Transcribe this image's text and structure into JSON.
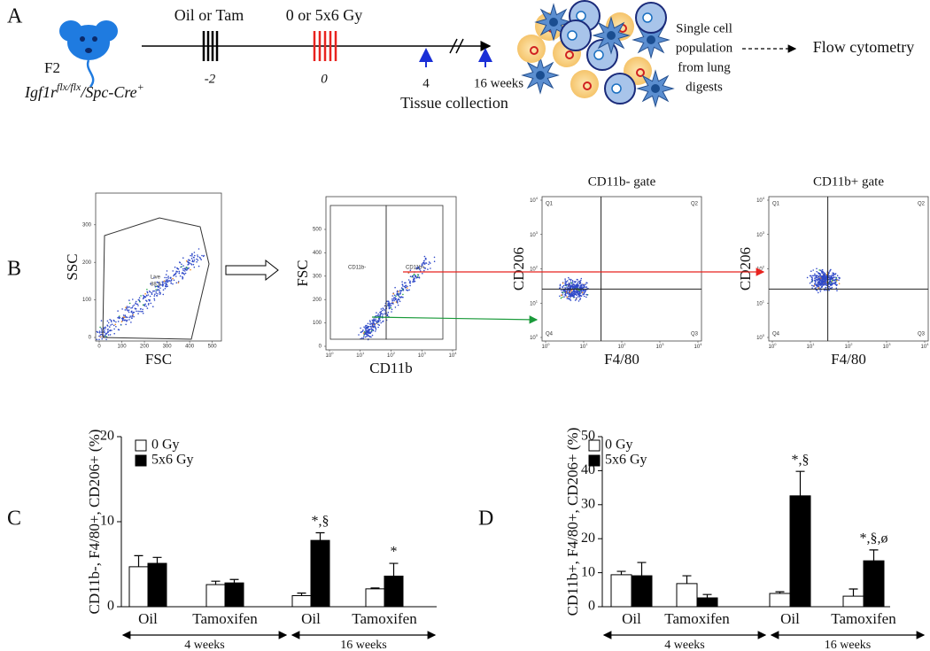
{
  "panel_a": {
    "label": "A",
    "treatment": "Oil or Tam",
    "radiation": "0 or 5x6 Gy",
    "timepoints": [
      "-2",
      "0",
      "4",
      "16 weeks"
    ],
    "collection": "Tissue collection",
    "mouse": "F2",
    "genotype": {
      "gene": "Igf1r",
      "allele": "flx/flx",
      "cre": "/Spc-Cre",
      "cre_sign": "+"
    },
    "cells": [
      "Single cell",
      "population",
      "from lung",
      "digests"
    ],
    "readout": "Flow cytometry"
  },
  "panel_b": {
    "label": "B",
    "log_base": 10,
    "log_exponents": [
      0,
      1,
      2,
      3,
      4
    ],
    "plots": [
      {
        "x_label": "FSC",
        "y_label": "SSC",
        "xticks": [
          0,
          100,
          200,
          300,
          400,
          500
        ],
        "yticks": [
          0,
          100,
          200,
          300
        ],
        "gate": "Live",
        "gate_value": 88.5
      },
      {
        "x_label": "CD11b",
        "y_label": "FSC",
        "x_log": true,
        "yticks": [
          0,
          100,
          200,
          300,
          400,
          500
        ],
        "gates": [
          "CD11b-",
          "CD11b+"
        ]
      },
      {
        "title": "CD11b- gate",
        "title_color": "#1a9a3a",
        "x_label": "F4/80",
        "y_label": "CD206",
        "x_log": true,
        "y_log": true,
        "quadrants": [
          "Q1",
          "Q2",
          "Q3",
          "Q4"
        ]
      },
      {
        "title": "CD11b+ gate",
        "title_color": "#e8231f",
        "x_label": "F4/80",
        "y_label": "CD206",
        "x_log": true,
        "y_log": true,
        "quadrants": [
          "Q1",
          "Q2",
          "Q3",
          "Q4"
        ]
      }
    ]
  },
  "chart_data": [
    {
      "type": "bar",
      "panel": "C",
      "y_label": "CD11b-, F4/80+, CD206+ (%)",
      "ylim": [
        0,
        20
      ],
      "yticks": [
        0,
        10,
        20
      ],
      "categories": [
        "Oil",
        "Tamoxifen",
        "Oil",
        "Tamoxifen"
      ],
      "groups": [
        "4 weeks",
        "16 weeks"
      ],
      "series": [
        {
          "name": "0 Gy",
          "color": "#ffffff",
          "values": [
            4.7,
            2.6,
            1.3,
            2.1
          ],
          "errors": [
            1.3,
            0.4,
            0.3,
            0.1
          ],
          "annotations": [
            null,
            null,
            null,
            null
          ]
        },
        {
          "name": "5x6 Gy",
          "color": "#000000",
          "values": [
            5.1,
            2.8,
            7.8,
            3.6
          ],
          "errors": [
            0.7,
            0.4,
            0.9,
            1.5
          ],
          "annotations": [
            null,
            null,
            "*,§",
            "*"
          ]
        }
      ]
    },
    {
      "type": "bar",
      "panel": "D",
      "y_label": "CD11b+, F4/80+, CD206+ (%)",
      "ylim": [
        0,
        50
      ],
      "yticks": [
        0,
        10,
        20,
        30,
        40,
        50
      ],
      "categories": [
        "Oil",
        "Tamoxifen",
        "Oil",
        "Tamoxifen"
      ],
      "groups": [
        "4 weeks",
        "16 weeks"
      ],
      "series": [
        {
          "name": "0 Gy",
          "color": "#ffffff",
          "values": [
            9.4,
            6.8,
            3.9,
            3.1
          ],
          "errors": [
            1.0,
            2.3,
            0.5,
            2.1
          ],
          "annotations": [
            null,
            null,
            null,
            null
          ]
        },
        {
          "name": "5x6 Gy",
          "color": "#000000",
          "values": [
            9.1,
            2.6,
            32.6,
            13.5
          ],
          "errors": [
            3.9,
            1.0,
            7.2,
            3.2
          ],
          "annotations": [
            null,
            null,
            "*,§",
            "*,§,ø"
          ]
        }
      ]
    }
  ]
}
